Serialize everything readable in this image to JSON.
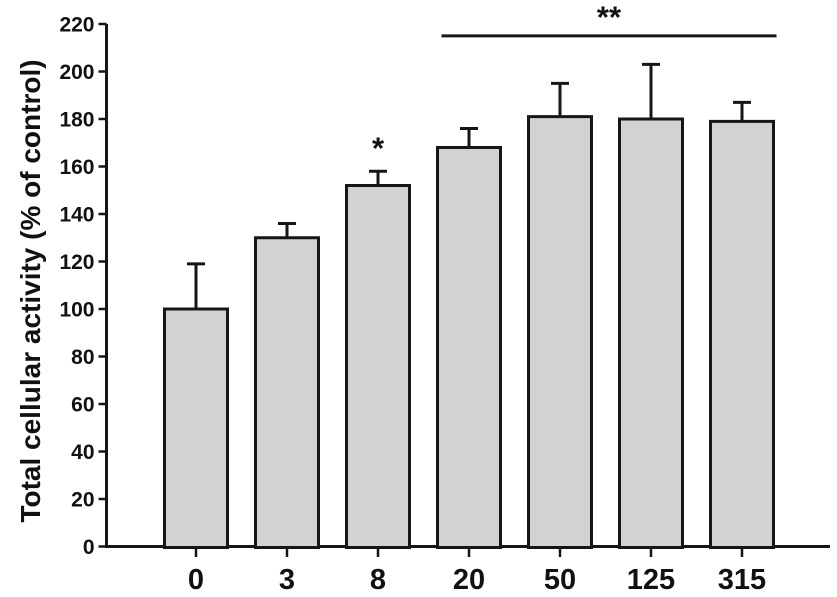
{
  "chart_data": {
    "type": "bar",
    "title": "",
    "xlabel": "",
    "ylabel": "Total cellular activity (% of control)",
    "categories": [
      "0",
      "3",
      "8",
      "20",
      "50",
      "125",
      "315"
    ],
    "values": [
      100,
      130,
      152,
      168,
      181,
      180,
      179
    ],
    "errors_plus": [
      19,
      6,
      6,
      8,
      14,
      23,
      8
    ],
    "ylim": [
      0,
      220
    ],
    "ytick_step": 20,
    "grid": "off",
    "legend": "none",
    "bar_fill": "#d2d2d2",
    "bar_stroke": "#161616",
    "axis_color": "#161616",
    "annotations": [
      {
        "type": "star",
        "category_index": 2,
        "label": "*"
      },
      {
        "type": "bracket",
        "from_index": 3,
        "to_index": 6,
        "label": "**",
        "y_value": 215
      }
    ]
  }
}
